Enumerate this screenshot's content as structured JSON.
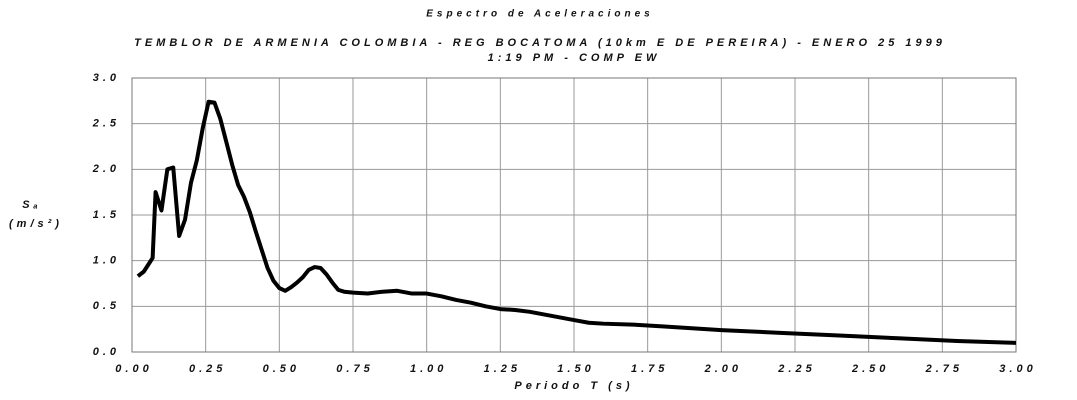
{
  "chart_data": {
    "type": "line",
    "title": "Espectro de Aceleraciones",
    "subtitle_lines": [
      "TEMBLOR DE ARMENIA COLOMBIA - REG BOCATOMA (10km E DE PEREIRA) - ENERO 25 1999",
      "1:19 PM - COMP EW"
    ],
    "ylabel_lines": [
      "Sₐ",
      "(m/s²)"
    ],
    "xlabel": "Periodo T (s)",
    "x": [
      0.02,
      0.04,
      0.06,
      0.07,
      0.08,
      0.1,
      0.12,
      0.14,
      0.16,
      0.18,
      0.2,
      0.22,
      0.24,
      0.26,
      0.28,
      0.3,
      0.32,
      0.34,
      0.36,
      0.38,
      0.4,
      0.42,
      0.44,
      0.46,
      0.48,
      0.5,
      0.52,
      0.54,
      0.56,
      0.58,
      0.6,
      0.62,
      0.64,
      0.66,
      0.68,
      0.7,
      0.72,
      0.75,
      0.8,
      0.85,
      0.9,
      0.95,
      1.0,
      1.05,
      1.1,
      1.15,
      1.2,
      1.25,
      1.3,
      1.35,
      1.4,
      1.45,
      1.5,
      1.55,
      1.6,
      1.7,
      1.8,
      1.9,
      2.0,
      2.2,
      2.4,
      2.6,
      2.8,
      3.0
    ],
    "series": [
      {
        "name": "Sa",
        "color": "#000000",
        "values": [
          0.83,
          0.88,
          0.98,
          1.03,
          1.75,
          1.55,
          2.0,
          2.02,
          1.27,
          1.45,
          1.85,
          2.1,
          2.45,
          2.74,
          2.73,
          2.55,
          2.3,
          2.05,
          1.83,
          1.7,
          1.53,
          1.32,
          1.12,
          0.92,
          0.78,
          0.7,
          0.67,
          0.71,
          0.76,
          0.82,
          0.9,
          0.93,
          0.92,
          0.85,
          0.76,
          0.68,
          0.66,
          0.65,
          0.64,
          0.66,
          0.67,
          0.64,
          0.64,
          0.61,
          0.57,
          0.54,
          0.5,
          0.47,
          0.46,
          0.44,
          0.41,
          0.38,
          0.35,
          0.32,
          0.31,
          0.3,
          0.28,
          0.26,
          0.24,
          0.21,
          0.18,
          0.15,
          0.12,
          0.1
        ]
      }
    ],
    "xlim": [
      0,
      3
    ],
    "ylim": [
      0,
      3
    ],
    "xticks": [
      {
        "value": 0,
        "label": "0.00"
      },
      0.25,
      {
        "value": 0.5,
        "label": "0.50"
      },
      0.75,
      {
        "value": 1,
        "label": "1.00"
      },
      1.25,
      {
        "value": 1.5,
        "label": "1.50"
      },
      1.75,
      {
        "value": 2,
        "label": "2.00"
      },
      2.25,
      {
        "value": 2.5,
        "label": "2.50"
      },
      2.75,
      {
        "value": 3,
        "label": "3.00"
      }
    ],
    "yticks": [
      {
        "value": 0,
        "label": "0.0"
      },
      0.5,
      {
        "value": 1,
        "label": "1.0"
      },
      1.5,
      {
        "value": 2,
        "label": "2.0"
      },
      2.5,
      {
        "value": 3,
        "label": "3.0"
      }
    ],
    "grid": true
  }
}
